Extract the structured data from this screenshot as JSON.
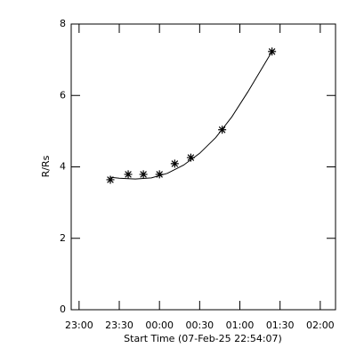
{
  "chart_data": {
    "type": "scatter",
    "x_label": "Start Time (07-Feb-25 22:54:07)",
    "y_label": "R/Rs",
    "xlim": [
      22.902,
      26.19
    ],
    "ylim": [
      0,
      8
    ],
    "xticks": [
      {
        "value": 23,
        "label": "23:00"
      },
      {
        "value": 23.5,
        "label": "23:30"
      },
      {
        "value": 24,
        "label": "00:00"
      },
      {
        "value": 24.5,
        "label": "00:30"
      },
      {
        "value": 25,
        "label": "01:00"
      },
      {
        "value": 25.5,
        "label": "01:30"
      },
      {
        "value": 26,
        "label": "02:00"
      }
    ],
    "yticks": [
      0,
      2,
      4,
      6,
      8
    ],
    "series": [
      {
        "style": "asterisk",
        "color": "#000000",
        "x": [
          23.389,
          23.611,
          23.8,
          24.0,
          24.19,
          24.39,
          24.78,
          25.4
        ],
        "values": [
          3.64,
          3.79,
          3.79,
          3.79,
          4.09,
          4.26,
          5.04,
          7.23
        ]
      },
      {
        "style": "line",
        "color": "#000000",
        "x": [
          23.389,
          23.5,
          23.7,
          23.9,
          24.1,
          24.3,
          24.5,
          24.7,
          24.9,
          25.1,
          25.4
        ],
        "values": [
          3.71,
          3.68,
          3.66,
          3.69,
          3.82,
          4.05,
          4.38,
          4.82,
          5.4,
          6.1,
          7.23
        ]
      }
    ]
  }
}
